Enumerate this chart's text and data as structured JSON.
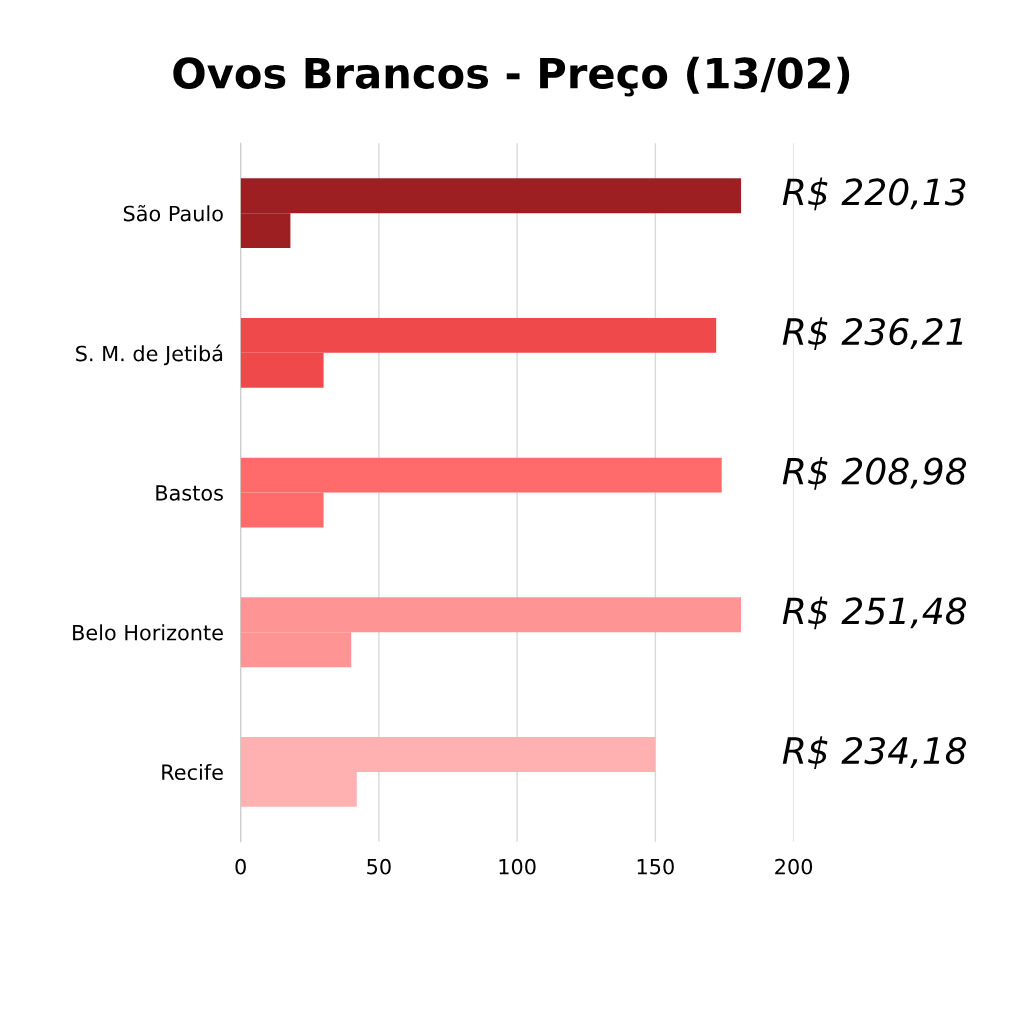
{
  "chart_data": {
    "type": "bar",
    "orientation": "horizontal",
    "title": "Ovos Brancos - Preço (13/02)",
    "categories": [
      "São Paulo",
      "S. M. de Jetibá",
      "Bastos",
      "Belo Horizonte",
      "Recife"
    ],
    "series": [
      {
        "colors": [
          "#9e1f22",
          "#f0494b",
          "#ff6b6b",
          "#ff9494",
          "#ffb0b0"
        ],
        "values": [
          181,
          172,
          174,
          181,
          150
        ]
      },
      {
        "colors": [
          "#9e1f22",
          "#f0494b",
          "#ff6b6b",
          "#ff9494",
          "#ffb0b0"
        ],
        "values": [
          18,
          30,
          30,
          40,
          42
        ]
      }
    ],
    "xlim": [
      0,
      200
    ],
    "xticks": [
      0,
      50,
      100,
      150,
      200
    ],
    "grid": "x",
    "legend": false,
    "annotations": [
      "R$ 220,13",
      "R$ 236,21",
      "R$ 208,98",
      "R$ 251,48",
      "R$ 234,18"
    ]
  }
}
